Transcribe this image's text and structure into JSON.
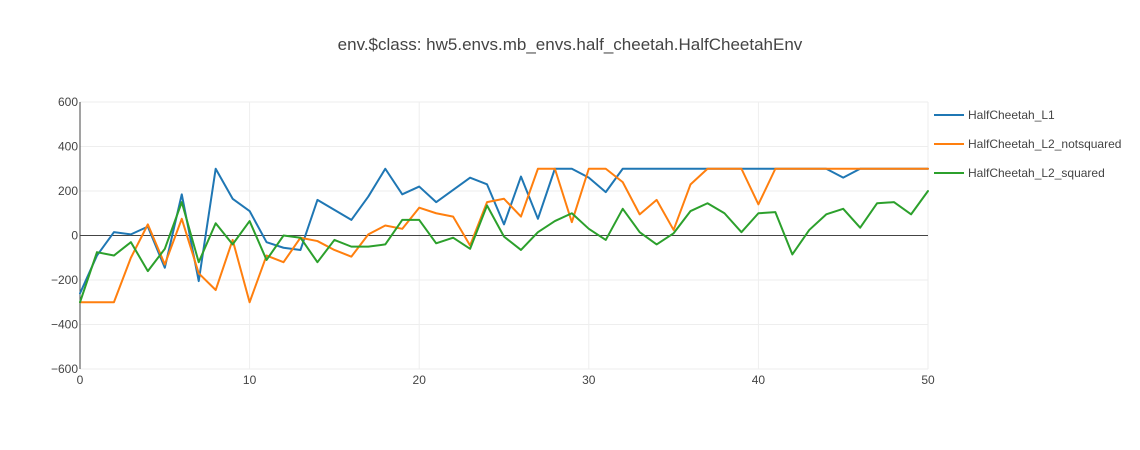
{
  "chart_data": {
    "type": "line",
    "title": "env.$class: hw5.envs.mb_envs.half_cheetah.HalfCheetahEnv",
    "xlabel": "",
    "ylabel": "",
    "xlim": [
      0,
      50
    ],
    "ylim": [
      -600,
      600
    ],
    "x_ticks": [
      0,
      10,
      20,
      30,
      40,
      50
    ],
    "y_ticks": [
      -600,
      -400,
      -200,
      0,
      200,
      400,
      600
    ],
    "x_tick_labels": [
      "0",
      "10",
      "20",
      "30",
      "40",
      "50"
    ],
    "y_tick_labels": [
      "−600",
      "−400",
      "−200",
      "0",
      "200",
      "400",
      "600"
    ],
    "grid": true,
    "legend_position": "right",
    "x": [
      0,
      1,
      2,
      3,
      4,
      5,
      6,
      7,
      8,
      9,
      10,
      11,
      12,
      13,
      14,
      15,
      16,
      17,
      18,
      19,
      20,
      21,
      22,
      23,
      24,
      25,
      26,
      27,
      28,
      29,
      30,
      31,
      32,
      33,
      34,
      35,
      36,
      37,
      38,
      39,
      40,
      41,
      42,
      43,
      44,
      45,
      46,
      47,
      48,
      49,
      50
    ],
    "series": [
      {
        "name": "HalfCheetah_L1",
        "color": "#1f77b4",
        "values": [
          -260,
          -90,
          15,
          5,
          40,
          -145,
          185,
          -205,
          300,
          165,
          110,
          -30,
          -55,
          -65,
          160,
          115,
          70,
          175,
          300,
          185,
          220,
          150,
          205,
          260,
          230,
          50,
          265,
          75,
          300,
          300,
          260,
          195,
          300,
          300,
          300,
          300,
          300,
          300,
          300,
          300,
          300,
          300,
          300,
          300,
          300,
          260,
          300,
          300,
          300,
          300,
          300
        ]
      },
      {
        "name": "HalfCheetah_L2_notsquared",
        "color": "#ff7f0e",
        "values": [
          -300,
          -300,
          -300,
          -100,
          50,
          -130,
          75,
          -170,
          -245,
          -20,
          -300,
          -90,
          -120,
          -10,
          -25,
          -65,
          -95,
          5,
          45,
          30,
          125,
          100,
          85,
          -45,
          150,
          165,
          85,
          300,
          300,
          60,
          300,
          300,
          240,
          95,
          160,
          25,
          230,
          300,
          300,
          300,
          140,
          300,
          300,
          300,
          300,
          300,
          300,
          300,
          300,
          300,
          300
        ]
      },
      {
        "name": "HalfCheetah_L2_squared",
        "color": "#2ca02c",
        "values": [
          -300,
          -75,
          -90,
          -30,
          -160,
          -60,
          150,
          -120,
          55,
          -40,
          65,
          -110,
          0,
          -10,
          -120,
          -20,
          -50,
          -50,
          -40,
          70,
          70,
          -35,
          -10,
          -60,
          135,
          -5,
          -65,
          15,
          65,
          100,
          30,
          -20,
          120,
          15,
          -40,
          10,
          110,
          145,
          100,
          15,
          100,
          105,
          -85,
          25,
          95,
          120,
          35,
          145,
          150,
          95,
          200
        ]
      }
    ]
  }
}
